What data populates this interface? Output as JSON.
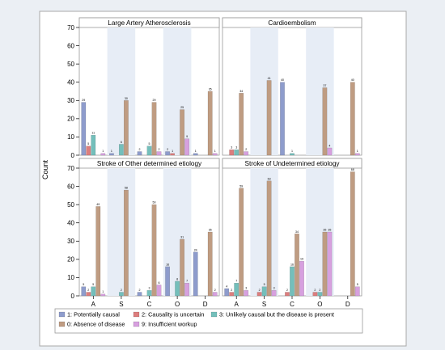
{
  "chart_data": {
    "type": "bar",
    "ylabel": "Count",
    "xlabel": "",
    "ylim": [
      0,
      70
    ],
    "yticks": [
      0,
      10,
      20,
      30,
      40,
      50,
      60,
      70
    ],
    "categories": [
      "A",
      "S",
      "C",
      "O",
      "D"
    ],
    "grid": false,
    "legend_position": "bottom",
    "series": [
      {
        "code": "1",
        "name": "1: Potentially causal",
        "color": "#8e9ccc"
      },
      {
        "code": "2",
        "name": "2: Causality is uncertain",
        "color": "#dc7e7e"
      },
      {
        "code": "3",
        "name": "3: Unlikely causal but the disease is present",
        "color": "#74bfbb"
      },
      {
        "code": "0",
        "name": "0: Absence of disease",
        "color": "#bf9c82"
      },
      {
        "code": "9",
        "name": "9: Insufficient workup",
        "color": "#d7a0df"
      }
    ],
    "panels": [
      {
        "title": "Large Artery Atherosclerosis",
        "values": {
          "A": [
            29,
            5,
            11,
            0,
            1
          ],
          "S": [
            1,
            0,
            6,
            30,
            0
          ],
          "C": [
            2,
            0,
            5,
            29,
            2
          ],
          "O": [
            2,
            1,
            0,
            25,
            9
          ],
          "D": [
            1,
            0,
            0,
            35,
            1
          ]
        }
      },
      {
        "title": "Cardioembolism",
        "values": {
          "A": [
            0,
            3,
            3,
            34,
            2
          ],
          "S": [
            0,
            0,
            0,
            41,
            0
          ],
          "C": [
            40,
            0,
            1,
            0,
            0
          ],
          "O": [
            0,
            0,
            0,
            37,
            4
          ],
          "D": [
            0,
            0,
            0,
            40,
            1
          ]
        }
      },
      {
        "title": "Stroke of Other determined etiology",
        "values": {
          "A": [
            5,
            2,
            5,
            49,
            1
          ],
          "S": [
            0,
            0,
            2,
            58,
            0
          ],
          "C": [
            2,
            0,
            3,
            50,
            6
          ],
          "O": [
            16,
            0,
            8,
            31,
            7
          ],
          "D": [
            24,
            0,
            0,
            35,
            2
          ]
        }
      },
      {
        "title": "Stroke of Undetermined etiology",
        "values": {
          "A": [
            4,
            2,
            7,
            59,
            3
          ],
          "S": [
            0,
            2,
            5,
            63,
            3
          ],
          "C": [
            0,
            2,
            16,
            34,
            19
          ],
          "O": [
            0,
            2,
            2,
            35,
            35
          ],
          "D": [
            0,
            0,
            0,
            68,
            5
          ]
        }
      }
    ]
  }
}
